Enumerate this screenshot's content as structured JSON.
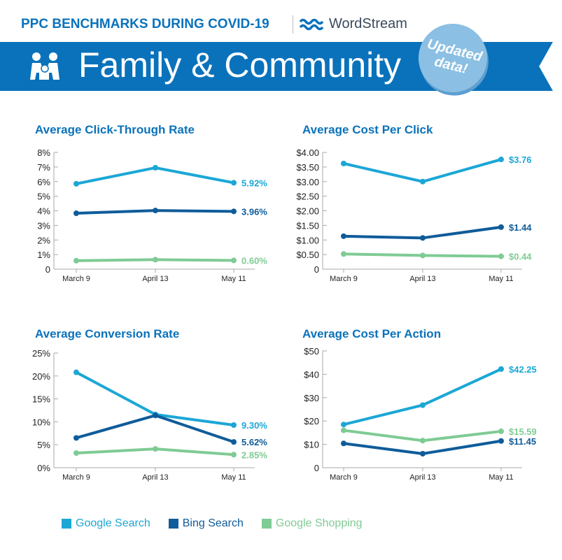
{
  "header": {
    "supertitle": "PPC BENCHMARKS DURING COVID-19",
    "brand": "WordStream",
    "title": "Family & Community",
    "badge_line1": "Updated",
    "badge_line2": "data!"
  },
  "colors": {
    "google_search": "#1ba7d6",
    "bing_search": "#0f5c9a",
    "google_shopping": "#7fcb94",
    "title": "#0a72bb"
  },
  "legend": [
    "Google Search",
    "Bing Search",
    "Google Shopping"
  ],
  "chart_data": [
    {
      "type": "line",
      "title": "Average Click-Through Rate",
      "categories": [
        "March 9",
        "April 13",
        "May 11"
      ],
      "ylim": [
        0,
        8
      ],
      "yticks": [
        "0",
        "1%",
        "2%",
        "3%",
        "4%",
        "5%",
        "6%",
        "7%",
        "8%"
      ],
      "series": [
        {
          "name": "Google Search",
          "values": [
            5.85,
            6.95,
            5.92
          ],
          "end_label": "5.92%"
        },
        {
          "name": "Bing Search",
          "values": [
            3.83,
            4.02,
            3.96
          ],
          "end_label": "3.96%"
        },
        {
          "name": "Google Shopping",
          "values": [
            0.58,
            0.65,
            0.6
          ],
          "end_label": "0.60%"
        }
      ]
    },
    {
      "type": "line",
      "title": "Average Cost Per Click",
      "categories": [
        "March 9",
        "April 13",
        "May 11"
      ],
      "ylim": [
        0,
        4
      ],
      "yticks": [
        "0",
        "$0.50",
        "$1.00",
        "$1.50",
        "$2.00",
        "$2.50",
        "$3.00",
        "$3.50",
        "$4.00"
      ],
      "series": [
        {
          "name": "Google Search",
          "values": [
            3.62,
            3.0,
            3.76
          ],
          "end_label": "$3.76"
        },
        {
          "name": "Bing Search",
          "values": [
            1.13,
            1.07,
            1.44
          ],
          "end_label": "$1.44"
        },
        {
          "name": "Google Shopping",
          "values": [
            0.52,
            0.47,
            0.44
          ],
          "end_label": "$0.44"
        }
      ]
    },
    {
      "type": "line",
      "title": "Average Conversion Rate",
      "categories": [
        "March 9",
        "April 13",
        "May 11"
      ],
      "ylim": [
        0,
        25
      ],
      "yticks": [
        "0%",
        "5%",
        "10%",
        "15%",
        "20%",
        "25%"
      ],
      "series": [
        {
          "name": "Google Search",
          "values": [
            20.8,
            11.6,
            9.3
          ],
          "end_label": "9.30%"
        },
        {
          "name": "Bing Search",
          "values": [
            6.5,
            11.4,
            5.62
          ],
          "end_label": "5.62%"
        },
        {
          "name": "Google Shopping",
          "values": [
            3.2,
            4.1,
            2.85
          ],
          "end_label": "2.85%"
        }
      ]
    },
    {
      "type": "line",
      "title": "Average Cost Per Action",
      "categories": [
        "March 9",
        "April 13",
        "May 11"
      ],
      "ylim": [
        0,
        50
      ],
      "yticks": [
        "0",
        "$10",
        "$20",
        "$30",
        "$40",
        "$50"
      ],
      "series": [
        {
          "name": "Google Search",
          "values": [
            18.5,
            26.8,
            42.25
          ],
          "end_label": "$42.25"
        },
        {
          "name": "Bing Search",
          "values": [
            10.4,
            6.0,
            11.45
          ],
          "end_label": "$11.45"
        },
        {
          "name": "Google Shopping",
          "values": [
            16.0,
            11.6,
            15.59
          ],
          "end_label": "$15.59"
        }
      ]
    }
  ]
}
